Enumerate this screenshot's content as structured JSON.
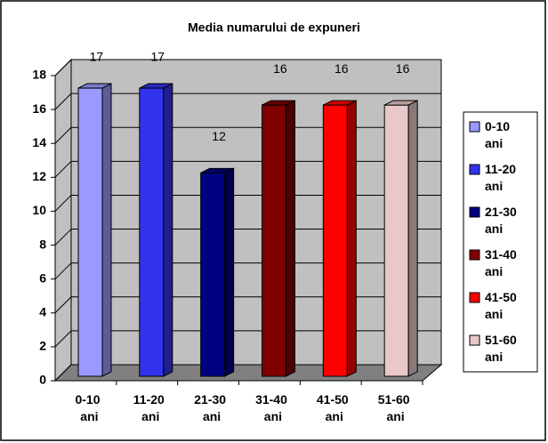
{
  "chart_data": {
    "type": "bar3d",
    "title": "Media numarului de expuneri",
    "categories": [
      "0-10 ani",
      "11-20 ani",
      "21-30 ani",
      "31-40 ani",
      "41-50 ani",
      "51-60 ani"
    ],
    "values": [
      17,
      17,
      12,
      16,
      16,
      16
    ],
    "colors": [
      "#9999ff",
      "#3333ee",
      "#000080",
      "#800000",
      "#ff0000",
      "#e8c8c8"
    ],
    "ylim": [
      0,
      18
    ],
    "yticks": [
      0,
      2,
      4,
      6,
      8,
      10,
      12,
      14,
      16,
      18
    ],
    "grid": true,
    "legend": "right"
  }
}
